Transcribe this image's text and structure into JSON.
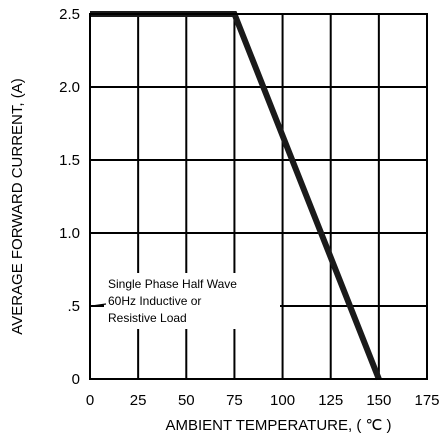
{
  "chart_data": {
    "type": "line",
    "title": "",
    "xlabel": "AMBIENT TEMPERATURE, ( ℃ )",
    "ylabel": "AVERAGE FORWARD CURRENT, (A)",
    "xlim": [
      0,
      175
    ],
    "ylim": [
      0,
      2.5
    ],
    "x_ticks": [
      0,
      25,
      50,
      75,
      100,
      125,
      150,
      175
    ],
    "x_tick_labels": [
      "0",
      "25",
      "50",
      "75",
      "100",
      "125",
      "150",
      "175"
    ],
    "y_ticks": [
      0,
      0.5,
      1.0,
      1.5,
      2.0,
      2.5
    ],
    "y_tick_labels": [
      "0",
      ".5",
      "1.0",
      "1.5",
      "2.0",
      "2.5"
    ],
    "grid": true,
    "legend": "none",
    "series": [
      {
        "x": [
          0,
          75,
          150
        ],
        "y": [
          2.5,
          2.5,
          0
        ],
        "color": "#1a1a1a"
      }
    ],
    "annotation": {
      "lines": [
        "Single Phase Half Wave",
        "60Hz Inductive or",
        "Resistive Load"
      ],
      "anchor": {
        "x": 0,
        "y": 0.5
      }
    }
  }
}
